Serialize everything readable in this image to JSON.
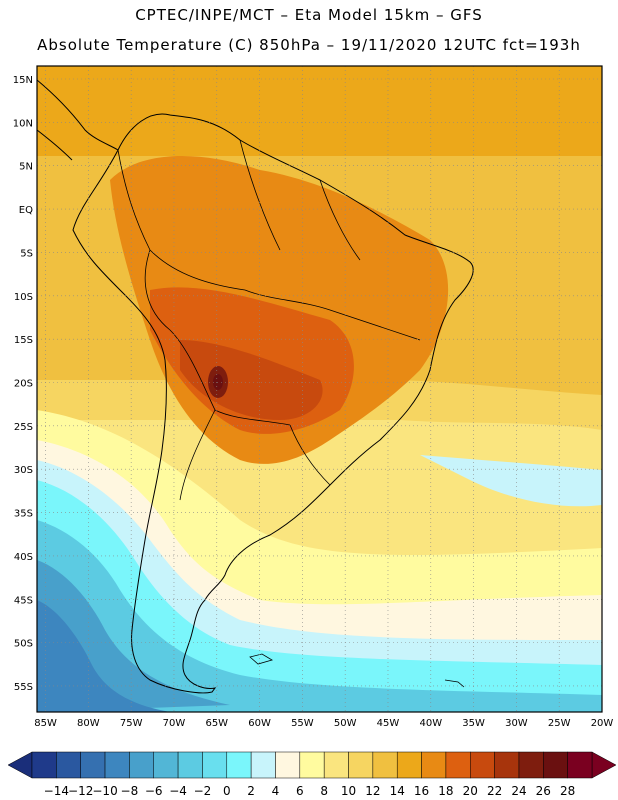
{
  "header": {
    "line1": "CPTEC/INPE/MCT –  Eta Model 15km – GFS",
    "line2": "Absolute Temperature (C) 850hPa – 19/11/2020 12UTC fct=193h"
  },
  "map": {
    "lat_labels": [
      "15N",
      "10N",
      "5N",
      "EQ",
      "5S",
      "10S",
      "15S",
      "20S",
      "25S",
      "30S",
      "35S",
      "40S",
      "45S",
      "50S",
      "55S"
    ],
    "lon_labels": [
      "85W",
      "80W",
      "75W",
      "70W",
      "65W",
      "60W",
      "55W",
      "50W",
      "45W",
      "40W",
      "35W",
      "30W",
      "25W",
      "20W"
    ],
    "lat_range": [
      16.5,
      -58
    ],
    "lon_range": [
      -86,
      -20
    ]
  },
  "colorbar": {
    "levels": [
      "-14",
      "-12",
      "-10",
      "-8",
      "-6",
      "-4",
      "-2",
      "0",
      "2",
      "4",
      "6",
      "8",
      "10",
      "12",
      "14",
      "16",
      "18",
      "20",
      "22",
      "24",
      "26",
      "28"
    ],
    "colors": [
      "#1f3a8a",
      "#2a58a0",
      "#3570b0",
      "#3d86bf",
      "#48a0cb",
      "#52b6d6",
      "#5ccbe2",
      "#69dfee",
      "#7af6fb",
      "#c8f4fb",
      "#fff7e0",
      "#fffb9f",
      "#fae57f",
      "#f6d561",
      "#f0c040",
      "#eca81a",
      "#e88a14",
      "#dd6010",
      "#c84a0e",
      "#a7340c",
      "#7e1d0e",
      "#6a1010",
      "#7a0020"
    ],
    "low_end_color": "#1a2e7a",
    "high_end_color": "#7a0020"
  }
}
